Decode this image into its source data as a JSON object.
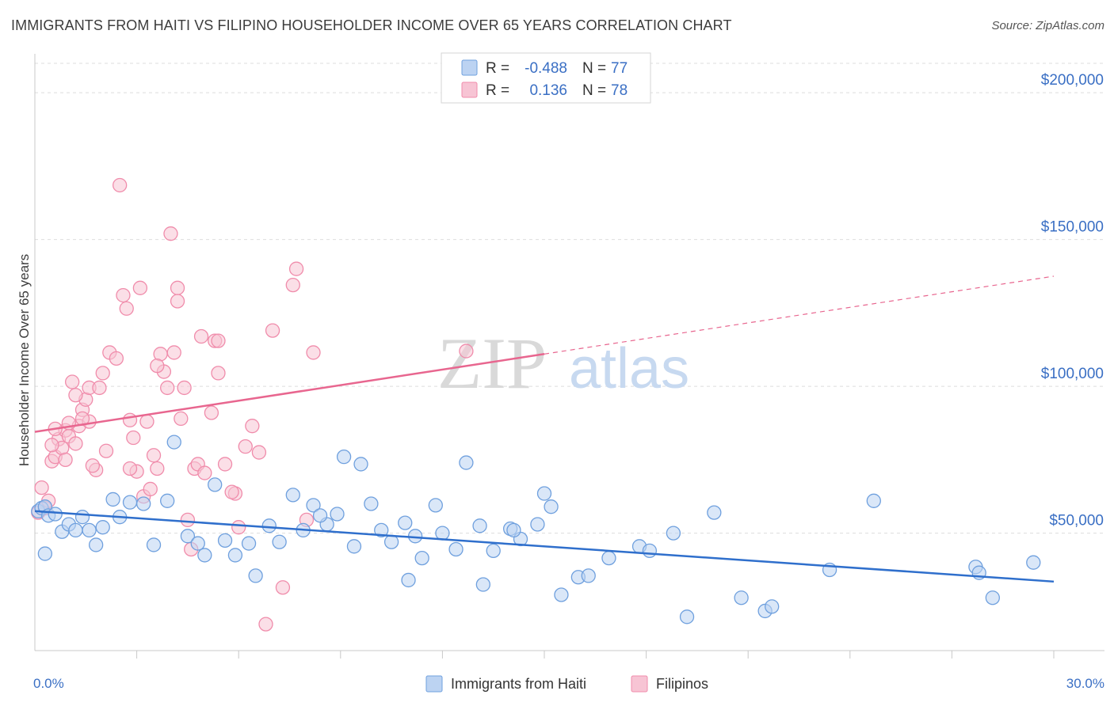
{
  "title": "IMMIGRANTS FROM HAITI VS FILIPINO HOUSEHOLDER INCOME OVER 65 YEARS CORRELATION CHART",
  "source": "Source: ZipAtlas.com",
  "watermark": {
    "zip": "ZIP",
    "atlas": "atlas"
  },
  "legend_top": {
    "rows": [
      {
        "r_label": "R =",
        "r_value": "-0.488",
        "n_label": "N =",
        "n_value": "77"
      },
      {
        "r_label": "R =",
        "r_value": "0.136",
        "n_label": "N =",
        "n_value": "78"
      }
    ]
  },
  "legend_bottom": [
    "Immigrants from Haiti",
    "Filipinos"
  ],
  "colors": {
    "haiti": "#6fa0de",
    "haiti_fill": "#bcd3f2",
    "haiti_line": "#2f6fcc",
    "filipino": "#f08cab",
    "filipino_fill": "#f7c4d4",
    "filipino_line": "#e8668f",
    "tick_text": "#3a6fc4"
  },
  "chart_data": {
    "type": "scatter",
    "title": "IMMIGRANTS FROM HAITI VS FILIPINO HOUSEHOLDER INCOME OVER 65 YEARS CORRELATION CHART",
    "xlabel": "",
    "ylabel": "Householder Income Over 65 years",
    "xlim": [
      0,
      30
    ],
    "ylim": [
      10000,
      210000
    ],
    "x_tick_labels": [
      "0.0%",
      "30.0%"
    ],
    "y_ticks": [
      50000,
      100000,
      150000,
      200000
    ],
    "y_tick_labels": [
      "$50,000",
      "$100,000",
      "$150,000",
      "$200,000"
    ],
    "grid": true,
    "series": [
      {
        "name": "Immigrants from Haiti",
        "r": -0.488,
        "n": 77,
        "trend": {
          "x0": 0,
          "y0": 57500,
          "x1": 30,
          "y1": 33500
        },
        "points": [
          [
            0.1,
            57500
          ],
          [
            0.2,
            58500
          ],
          [
            0.3,
            59000
          ],
          [
            0.4,
            56000
          ],
          [
            0.6,
            56500
          ],
          [
            0.8,
            50500
          ],
          [
            1.0,
            53000
          ],
          [
            1.2,
            51000
          ],
          [
            1.4,
            55500
          ],
          [
            1.6,
            51000
          ],
          [
            1.8,
            46000
          ],
          [
            2.0,
            52000
          ],
          [
            2.3,
            61500
          ],
          [
            2.8,
            60500
          ],
          [
            2.5,
            55500
          ],
          [
            3.2,
            60000
          ],
          [
            3.5,
            46000
          ],
          [
            3.9,
            61000
          ],
          [
            4.1,
            81000
          ],
          [
            4.5,
            49000
          ],
          [
            4.8,
            46500
          ],
          [
            5.0,
            42500
          ],
          [
            5.3,
            66500
          ],
          [
            5.6,
            47500
          ],
          [
            5.9,
            42500
          ],
          [
            6.3,
            46500
          ],
          [
            6.5,
            35500
          ],
          [
            6.9,
            52500
          ],
          [
            7.2,
            47000
          ],
          [
            7.6,
            63000
          ],
          [
            7.9,
            51000
          ],
          [
            8.2,
            59500
          ],
          [
            8.6,
            53000
          ],
          [
            8.9,
            56500
          ],
          [
            8.4,
            56000
          ],
          [
            9.1,
            76000
          ],
          [
            9.4,
            45500
          ],
          [
            9.6,
            73500
          ],
          [
            9.9,
            60000
          ],
          [
            10.2,
            51000
          ],
          [
            10.5,
            47000
          ],
          [
            10.9,
            53500
          ],
          [
            11.2,
            49000
          ],
          [
            11.4,
            41500
          ],
          [
            11.8,
            59500
          ],
          [
            11.0,
            34000
          ],
          [
            12.0,
            50000
          ],
          [
            12.4,
            44500
          ],
          [
            12.7,
            74000
          ],
          [
            13.1,
            52500
          ],
          [
            13.5,
            44000
          ],
          [
            13.2,
            32500
          ],
          [
            14.0,
            51500
          ],
          [
            14.3,
            48000
          ],
          [
            14.8,
            53000
          ],
          [
            14.1,
            51000
          ],
          [
            15.0,
            63500
          ],
          [
            15.2,
            59000
          ],
          [
            15.5,
            29000
          ],
          [
            16.0,
            35000
          ],
          [
            16.3,
            35500
          ],
          [
            16.9,
            41500
          ],
          [
            17.8,
            45500
          ],
          [
            18.1,
            44000
          ],
          [
            18.8,
            50000
          ],
          [
            19.2,
            21500
          ],
          [
            20.0,
            57000
          ],
          [
            20.8,
            28000
          ],
          [
            21.5,
            23500
          ],
          [
            21.7,
            25000
          ],
          [
            23.4,
            37500
          ],
          [
            24.7,
            61000
          ],
          [
            27.7,
            38500
          ],
          [
            27.8,
            36500
          ],
          [
            28.2,
            28000
          ],
          [
            29.4,
            40000
          ],
          [
            0.3,
            43000
          ]
        ]
      },
      {
        "name": "Filipinos",
        "r": 0.136,
        "n": 78,
        "trend": {
          "x0": 0,
          "y0": 84500,
          "x1": 15,
          "y1": 111000,
          "x_dash_end": 30,
          "y_dash_end": 137500
        },
        "points": [
          [
            0.1,
            57000
          ],
          [
            0.2,
            65500
          ],
          [
            0.3,
            58500
          ],
          [
            0.4,
            61000
          ],
          [
            0.5,
            74500
          ],
          [
            0.6,
            76000
          ],
          [
            0.7,
            82000
          ],
          [
            0.8,
            79000
          ],
          [
            0.9,
            85000
          ],
          [
            0.9,
            75000
          ],
          [
            1.0,
            83000
          ],
          [
            1.1,
            101500
          ],
          [
            1.2,
            80500
          ],
          [
            1.3,
            86500
          ],
          [
            1.4,
            92000
          ],
          [
            1.5,
            95500
          ],
          [
            1.6,
            88000
          ],
          [
            1.6,
            99500
          ],
          [
            1.8,
            71500
          ],
          [
            1.9,
            99500
          ],
          [
            2.0,
            104500
          ],
          [
            1.7,
            73000
          ],
          [
            2.1,
            78000
          ],
          [
            2.2,
            111500
          ],
          [
            2.5,
            168500
          ],
          [
            2.6,
            131000
          ],
          [
            2.7,
            126500
          ],
          [
            2.8,
            88500
          ],
          [
            2.9,
            82500
          ],
          [
            3.0,
            71000
          ],
          [
            3.1,
            133500
          ],
          [
            3.2,
            62500
          ],
          [
            3.3,
            88000
          ],
          [
            3.4,
            65000
          ],
          [
            3.5,
            76500
          ],
          [
            3.6,
            72000
          ],
          [
            3.7,
            111000
          ],
          [
            3.8,
            105000
          ],
          [
            3.9,
            99500
          ],
          [
            4.0,
            152000
          ],
          [
            4.1,
            111500
          ],
          [
            4.2,
            133500
          ],
          [
            4.2,
            129000
          ],
          [
            4.3,
            89000
          ],
          [
            4.4,
            99500
          ],
          [
            4.5,
            54500
          ],
          [
            4.6,
            44500
          ],
          [
            4.7,
            72000
          ],
          [
            4.8,
            73500
          ],
          [
            4.9,
            117000
          ],
          [
            5.0,
            70500
          ],
          [
            5.2,
            91000
          ],
          [
            5.3,
            115500
          ],
          [
            5.4,
            104500
          ],
          [
            5.6,
            73500
          ],
          [
            5.4,
            115500
          ],
          [
            5.9,
            63500
          ],
          [
            6.0,
            52000
          ],
          [
            6.2,
            79500
          ],
          [
            6.4,
            86500
          ],
          [
            6.6,
            77500
          ],
          [
            6.8,
            19000
          ],
          [
            7.0,
            119000
          ],
          [
            7.3,
            31500
          ],
          [
            7.6,
            134500
          ],
          [
            7.7,
            140000
          ],
          [
            8.0,
            54500
          ],
          [
            8.2,
            111500
          ],
          [
            1.4,
            89000
          ],
          [
            2.4,
            109500
          ],
          [
            0.6,
            85500
          ],
          [
            1.0,
            87500
          ],
          [
            3.6,
            107000
          ],
          [
            2.8,
            72000
          ],
          [
            5.8,
            64000
          ],
          [
            0.5,
            80000
          ],
          [
            1.2,
            97000
          ],
          [
            12.7,
            112000
          ]
        ]
      }
    ]
  }
}
